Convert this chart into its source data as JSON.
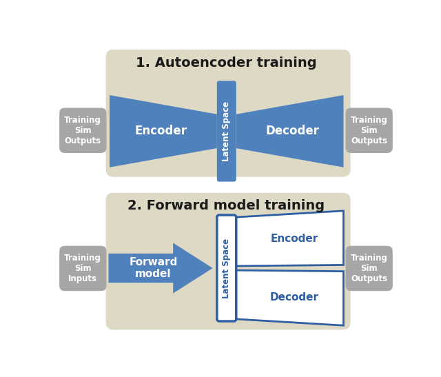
{
  "bg_color": "#ffffff",
  "panel1_bg": "#ddd9c4",
  "panel2_bg": "#ddd9c4",
  "blue_fill": "#4f81bd",
  "blue_outline": "#2e5fa3",
  "gray_box_fill": "#a6a6a6",
  "title1": "1. Autoencoder training",
  "title2": "2. Forward model training",
  "latent_space_text": "Latent Space",
  "encoder_text": "Encoder",
  "decoder_text": "Decoder",
  "forward_model_text": "Forward\nmodel",
  "training_sim_outputs_text": "Training\nSim\nOutputs",
  "training_sim_inputs_text": "Training\nSim\nInputs",
  "training_sim_outputs2_text": "Training\nSim\nOutputs",
  "figw": 6.4,
  "figh": 5.47,
  "dpi": 100
}
